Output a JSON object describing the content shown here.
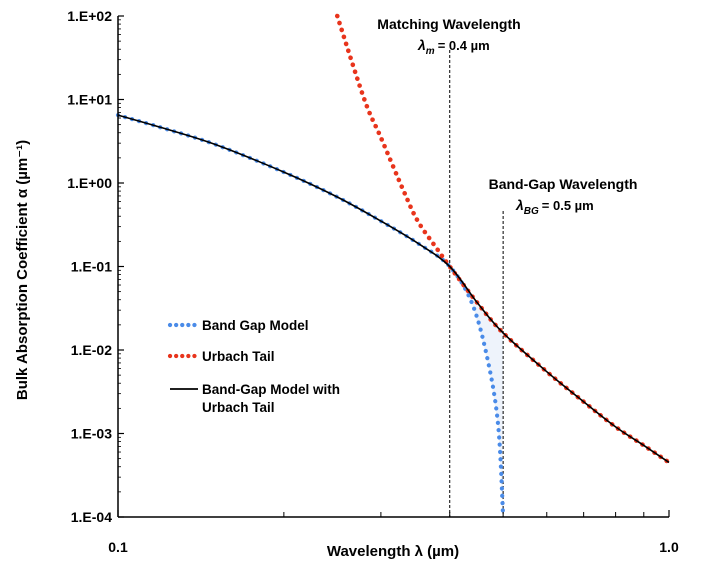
{
  "chart_data": {
    "type": "line",
    "xlabel": "Wavelength λ (µm)",
    "ylabel": "Bulk Absorption Coefficient α (µm⁻¹)",
    "xscale": "log",
    "yscale": "log",
    "xlim": [
      0.1,
      1.0
    ],
    "ylim": [
      0.0001,
      100
    ],
    "x_tick_labels": [
      "0.1",
      "1.0"
    ],
    "y_tick_labels": [
      "1.E-04",
      "1.E-03",
      "1.E-02",
      "1.E-01",
      "1.E+00",
      "1.E+01",
      "1.E+02"
    ],
    "grid": false,
    "legend_position": "lower-left",
    "annotations": [
      {
        "title": "Matching Wavelength",
        "symbol": "λ",
        "subscript": "m",
        "value_text": "= 0.4 µm",
        "x": 0.4
      },
      {
        "title": "Band-Gap Wavelength",
        "symbol": "λ",
        "subscript": "BG",
        "value_text": "= 0.5 µm",
        "x": 0.5
      }
    ],
    "series": [
      {
        "name": "Band Gap Model",
        "color": "#4a8be8",
        "style": "dotted",
        "x": [
          0.1,
          0.12,
          0.15,
          0.2,
          0.25,
          0.3,
          0.35,
          0.4,
          0.44,
          0.47,
          0.49,
          0.5
        ],
        "y": [
          6.5,
          4.6,
          2.9,
          1.35,
          0.68,
          0.35,
          0.19,
          0.1,
          0.035,
          0.007,
          0.0012,
          0.0001
        ]
      },
      {
        "name": "Urbach Tail",
        "color": "#e8341c",
        "style": "dotted",
        "x": [
          0.25,
          0.28,
          0.3,
          0.33,
          0.35,
          0.38,
          0.4,
          0.45,
          0.5,
          0.6,
          0.7,
          0.8,
          0.9,
          1.0
        ],
        "y": [
          100,
          10,
          3.5,
          0.8,
          0.35,
          0.16,
          0.1,
          0.036,
          0.016,
          0.0055,
          0.0024,
          0.0012,
          0.00072,
          0.00045
        ]
      },
      {
        "name": "Band-Gap Model with Urbach Tail",
        "color": "#000000",
        "style": "solid",
        "x": [
          0.1,
          0.12,
          0.15,
          0.2,
          0.25,
          0.3,
          0.35,
          0.4,
          0.45,
          0.5,
          0.6,
          0.7,
          0.8,
          0.9,
          1.0
        ],
        "y": [
          6.5,
          4.6,
          2.9,
          1.35,
          0.68,
          0.35,
          0.19,
          0.1,
          0.036,
          0.016,
          0.0055,
          0.0024,
          0.0012,
          0.00072,
          0.00045
        ]
      }
    ]
  }
}
